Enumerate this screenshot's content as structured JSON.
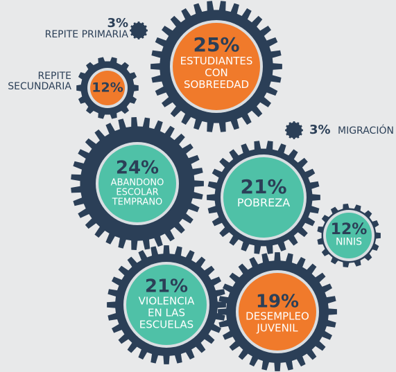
{
  "gears": [
    {
      "percent": "25%",
      "label": [
        "ESTUDIANTES",
        "CON",
        "SOBREEDAD"
      ],
      "color": "#f07a2b"
    },
    {
      "percent": "12%",
      "label": [
        "REPITE",
        "SECUNDARIA"
      ],
      "color": "#f07a2b"
    },
    {
      "percent": "3%",
      "label": [
        "REPITE PRIMARIA"
      ],
      "color": "#2b3f57"
    },
    {
      "percent": "3%",
      "label": [
        "MIGRACIÓN"
      ],
      "color": "#2b3f57"
    },
    {
      "percent": "24%",
      "label": [
        "ABANDONO",
        "ESCOLAR",
        "TEMPRANO"
      ],
      "color": "#4fc1a7"
    },
    {
      "percent": "21%",
      "label": [
        "POBREZA"
      ],
      "color": "#4fc1a7"
    },
    {
      "percent": "12%",
      "label": [
        "NINIS"
      ],
      "color": "#4fc1a7"
    },
    {
      "percent": "21%",
      "label": [
        "VIOLENCIA",
        "EN LAS",
        "ESCUELAS"
      ],
      "color": "#4fc1a7"
    },
    {
      "percent": "19%",
      "label": [
        "DESEMPLEO",
        "JUVENIL"
      ],
      "color": "#f07a2b"
    }
  ]
}
